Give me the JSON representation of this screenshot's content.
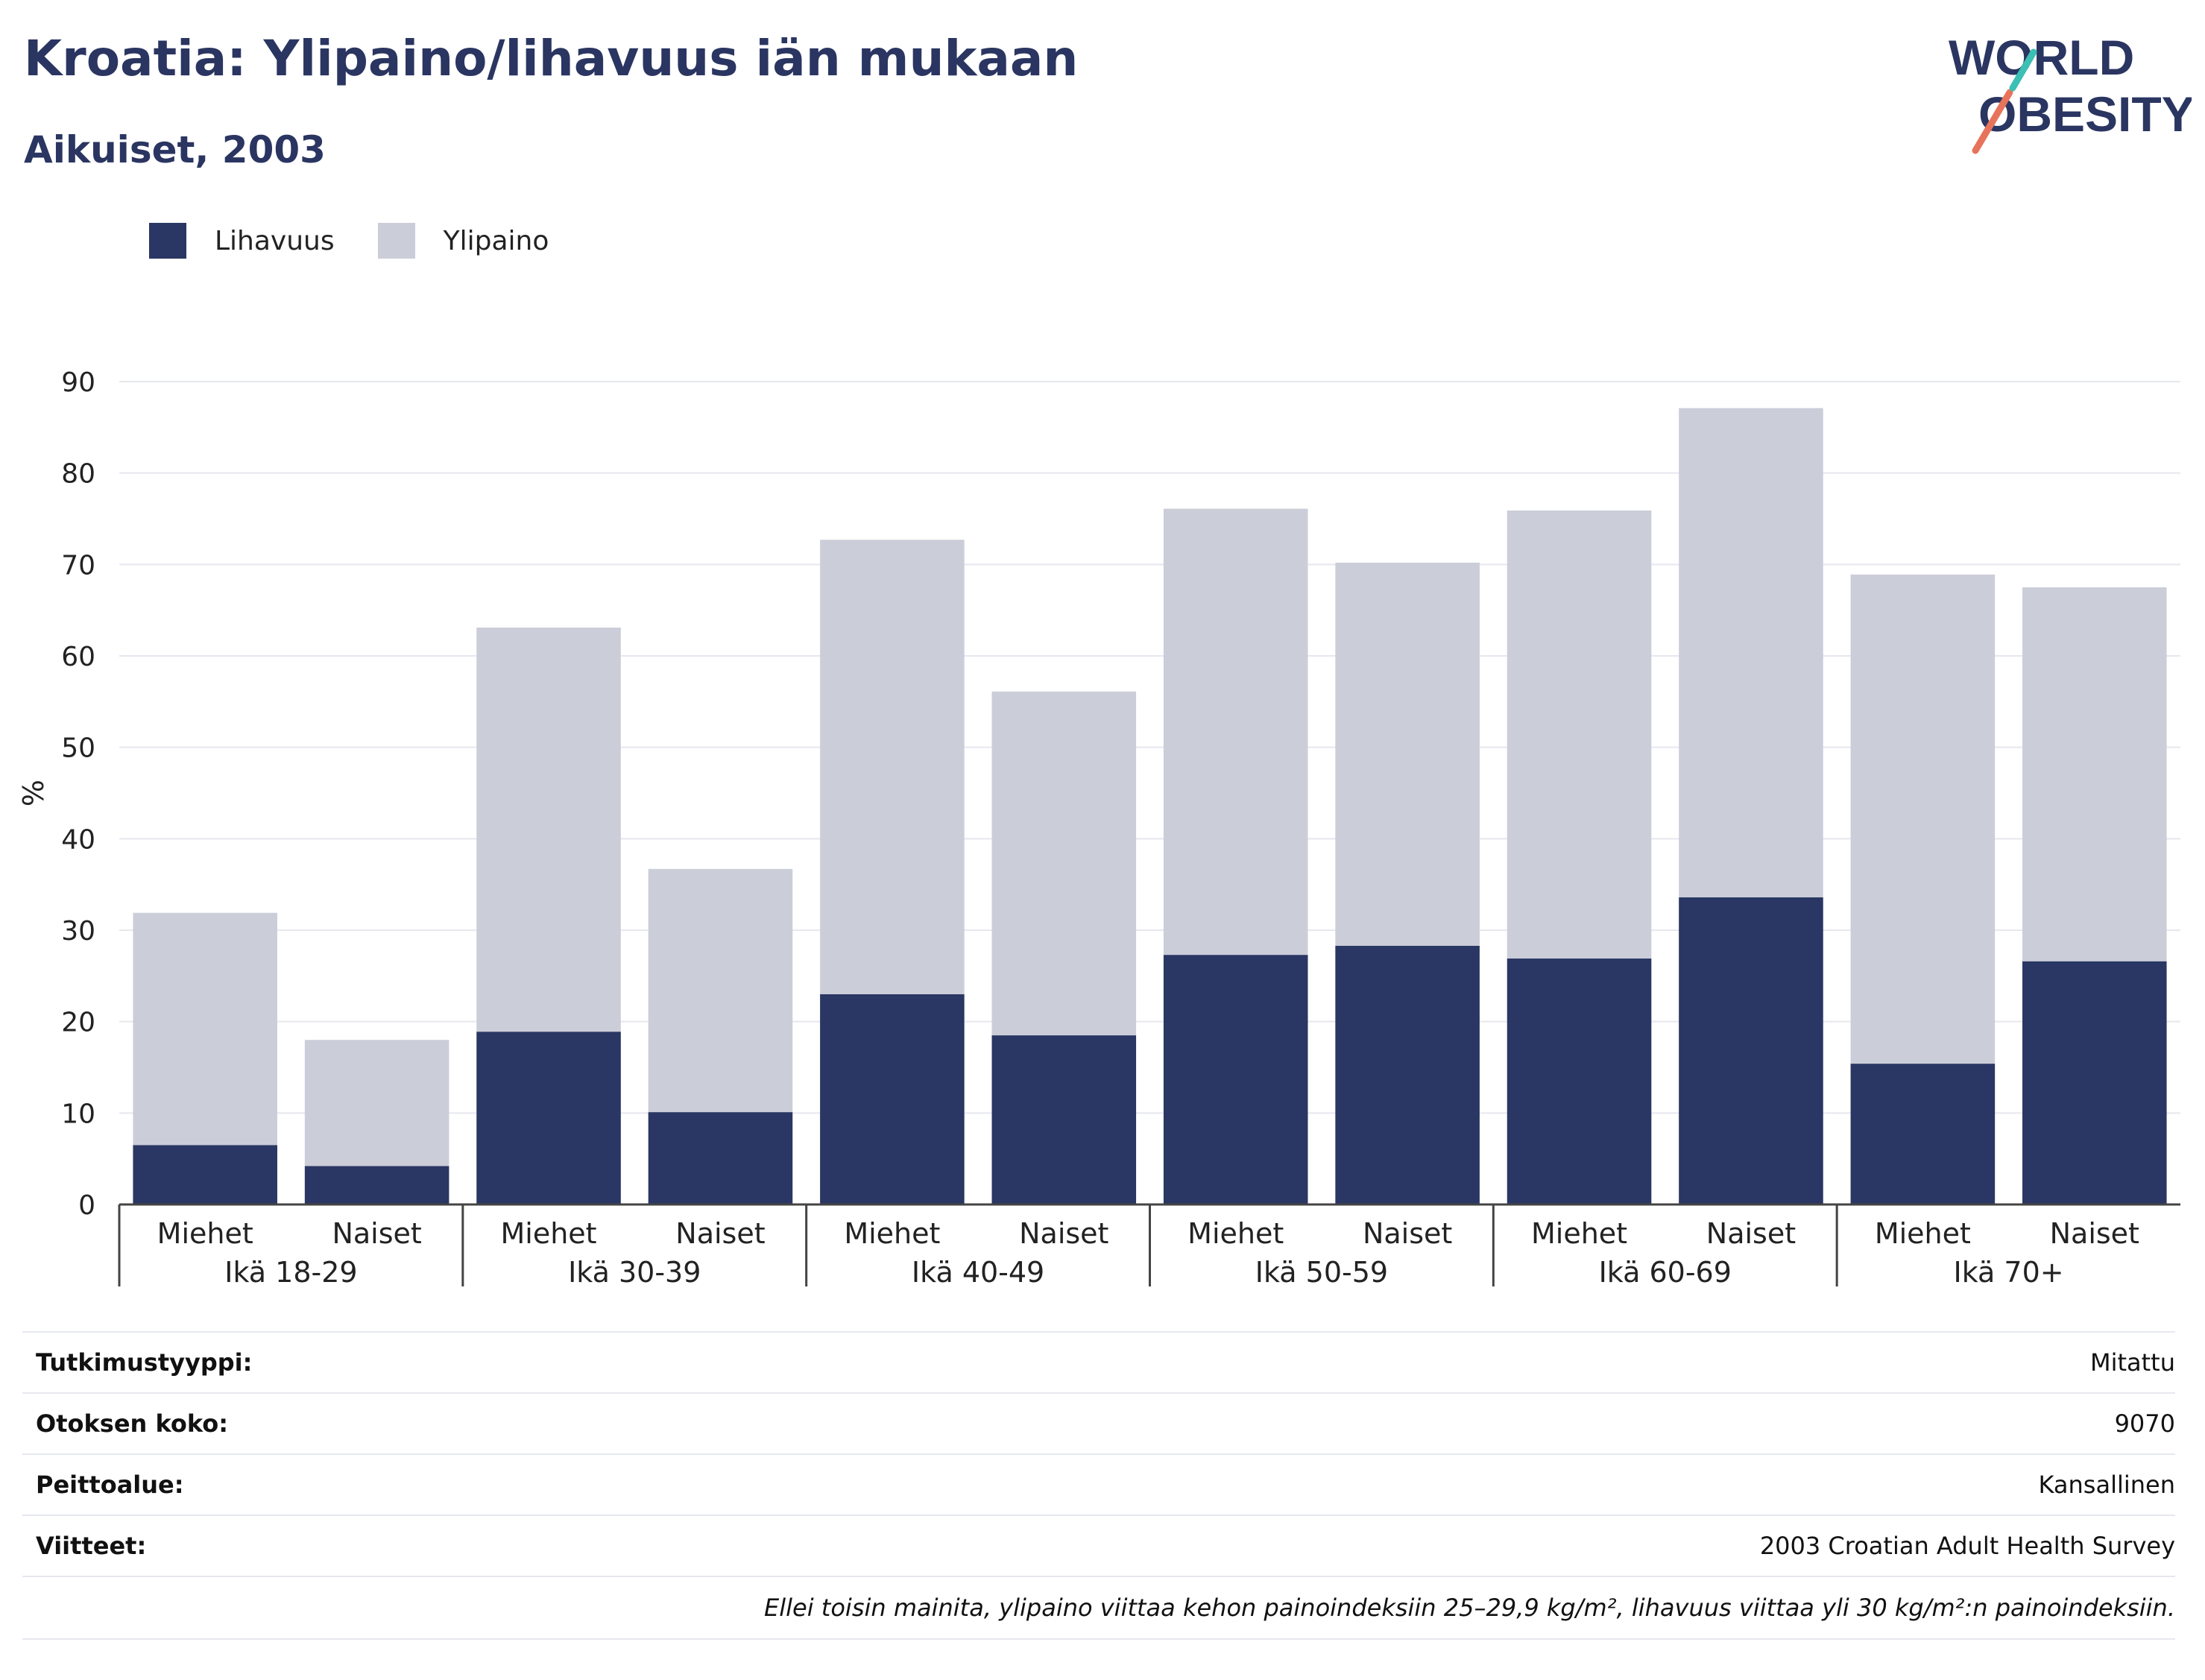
{
  "header": {
    "title": "Kroatia: Ylipaino/lihavuus iän mukaan",
    "subtitle": "Aikuiset, 2003"
  },
  "logo": {
    "line1": "WORLD",
    "line2": "OBESITY"
  },
  "legend": [
    {
      "label": "Lihavuus",
      "color": "#2a3663"
    },
    {
      "label": "Ylipaino",
      "color": "#cbcdd9"
    }
  ],
  "chart_data": {
    "type": "bar",
    "stacked": true,
    "ylabel": "%",
    "ylim": [
      0,
      90
    ],
    "yticks": [
      0,
      10,
      20,
      30,
      40,
      50,
      60,
      70,
      80,
      90
    ],
    "grid": true,
    "legend_position": "top-left",
    "groups": [
      "Ikä 18-29",
      "Ikä 30-39",
      "Ikä 40-49",
      "Ikä 50-59",
      "Ikä 60-69",
      "Ikä 70+"
    ],
    "subcategories": [
      "Miehet",
      "Naiset"
    ],
    "series": [
      {
        "name": "Lihavuus",
        "color": "#2a3663",
        "values": [
          6.5,
          4.2,
          18.9,
          10.1,
          23.0,
          18.5,
          27.3,
          28.3,
          26.9,
          33.6,
          15.4,
          26.6
        ]
      },
      {
        "name": "Ylipaino",
        "color": "#cbcdd9",
        "values": [
          25.4,
          13.8,
          44.2,
          26.6,
          49.7,
          37.6,
          48.8,
          41.9,
          49.0,
          53.5,
          53.5,
          40.9
        ]
      }
    ]
  },
  "meta": [
    {
      "key": "Tutkimustyyppi:",
      "value": "Mitattu"
    },
    {
      "key": "Otoksen koko:",
      "value": "9070"
    },
    {
      "key": "Peittoalue:",
      "value": "Kansallinen"
    },
    {
      "key": "Viitteet:",
      "value": "2003 Croatian Adult Health Survey"
    }
  ],
  "note": "Ellei toisin mainita, ylipaino viittaa kehon painoindeksiin 25–29,9 kg/m², lihavuus viittaa yli 30 kg/m²:n painoindeksiin."
}
